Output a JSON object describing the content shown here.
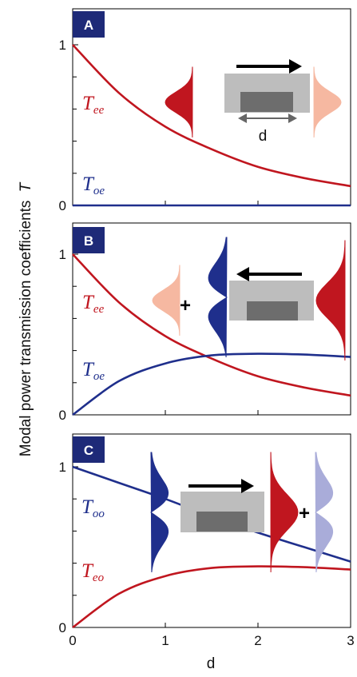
{
  "chart_data": [
    {
      "panel": "A",
      "type": "line",
      "xlim": [
        0,
        3
      ],
      "ylim": [
        0,
        1
      ],
      "yticklabels": [
        "0",
        "1"
      ],
      "xticks_unlabeled": [
        1,
        2,
        3
      ],
      "series": [
        {
          "name": "T_ee",
          "label_main": "T",
          "label_sub": "ee",
          "color": "#c0161f",
          "x": [
            0,
            0.5,
            1,
            1.5,
            2,
            2.5,
            3
          ],
          "y": [
            1.0,
            0.7,
            0.49,
            0.35,
            0.24,
            0.17,
            0.12
          ]
        },
        {
          "name": "T_oe",
          "label_main": "T",
          "label_sub": "oe",
          "color": "#1f2f8c",
          "x": [
            0,
            1,
            2,
            3
          ],
          "y": [
            0.0,
            0.0,
            0.0,
            0.0
          ]
        }
      ],
      "inset": {
        "direction": "right",
        "dimension_label": "d",
        "input_modes": [
          "even-red"
        ],
        "output_modes": [
          "even-pink"
        ]
      }
    },
    {
      "panel": "B",
      "type": "line",
      "xlim": [
        0,
        3
      ],
      "ylim": [
        0,
        1
      ],
      "yticklabels": [
        "0",
        "1"
      ],
      "xticks_unlabeled": [
        1,
        2,
        3
      ],
      "series": [
        {
          "name": "T_ee",
          "label_main": "T",
          "label_sub": "ee",
          "color": "#c0161f",
          "x": [
            0,
            0.5,
            1,
            1.5,
            2,
            2.5,
            3
          ],
          "y": [
            1.0,
            0.7,
            0.49,
            0.35,
            0.24,
            0.17,
            0.12
          ]
        },
        {
          "name": "T_oe",
          "label_main": "T",
          "label_sub": "oe",
          "color": "#1f2f8c",
          "x": [
            0,
            0.5,
            1,
            1.5,
            2,
            2.5,
            3
          ],
          "y": [
            0.0,
            0.21,
            0.32,
            0.37,
            0.38,
            0.375,
            0.36
          ]
        }
      ],
      "inset": {
        "direction": "left",
        "plus_sign": "+",
        "input_modes": [
          "even-red"
        ],
        "output_modes": [
          "even-pink",
          "odd-blue"
        ]
      }
    },
    {
      "panel": "C",
      "type": "line",
      "xlim": [
        0,
        3
      ],
      "ylim": [
        0,
        1
      ],
      "xticklabels": [
        "0",
        "1",
        "2",
        "3"
      ],
      "yticklabels": [
        "0",
        "1"
      ],
      "series": [
        {
          "name": "T_oo",
          "label_main": "T",
          "label_sub": "oo",
          "color": "#1f2f8c",
          "x": [
            0,
            0.5,
            1,
            1.5,
            2,
            2.5,
            3
          ],
          "y": [
            1.0,
            0.9,
            0.8,
            0.69,
            0.59,
            0.5,
            0.41
          ]
        },
        {
          "name": "T_eo",
          "label_main": "T",
          "label_sub": "eo",
          "color": "#c0161f",
          "x": [
            0,
            0.5,
            1,
            1.5,
            2,
            2.5,
            3
          ],
          "y": [
            0.0,
            0.21,
            0.32,
            0.37,
            0.38,
            0.375,
            0.36
          ]
        }
      ],
      "inset": {
        "direction": "right",
        "plus_sign": "+",
        "input_modes": [
          "odd-blue"
        ],
        "output_modes": [
          "even-red",
          "odd-lightblue"
        ]
      }
    }
  ],
  "shared": {
    "ylabel_main": "Modal power transmission coefficients",
    "ylabel_symbol": "T",
    "xlabel": "d"
  },
  "colors": {
    "red": "#c0161f",
    "blue": "#1f2f8c",
    "pink": "#f6b8a1",
    "light_blue": "#a9acd9",
    "badge": "#1e2a78",
    "waveguide_light": "#bdbdbd",
    "waveguide_dark": "#6d6d6d"
  }
}
